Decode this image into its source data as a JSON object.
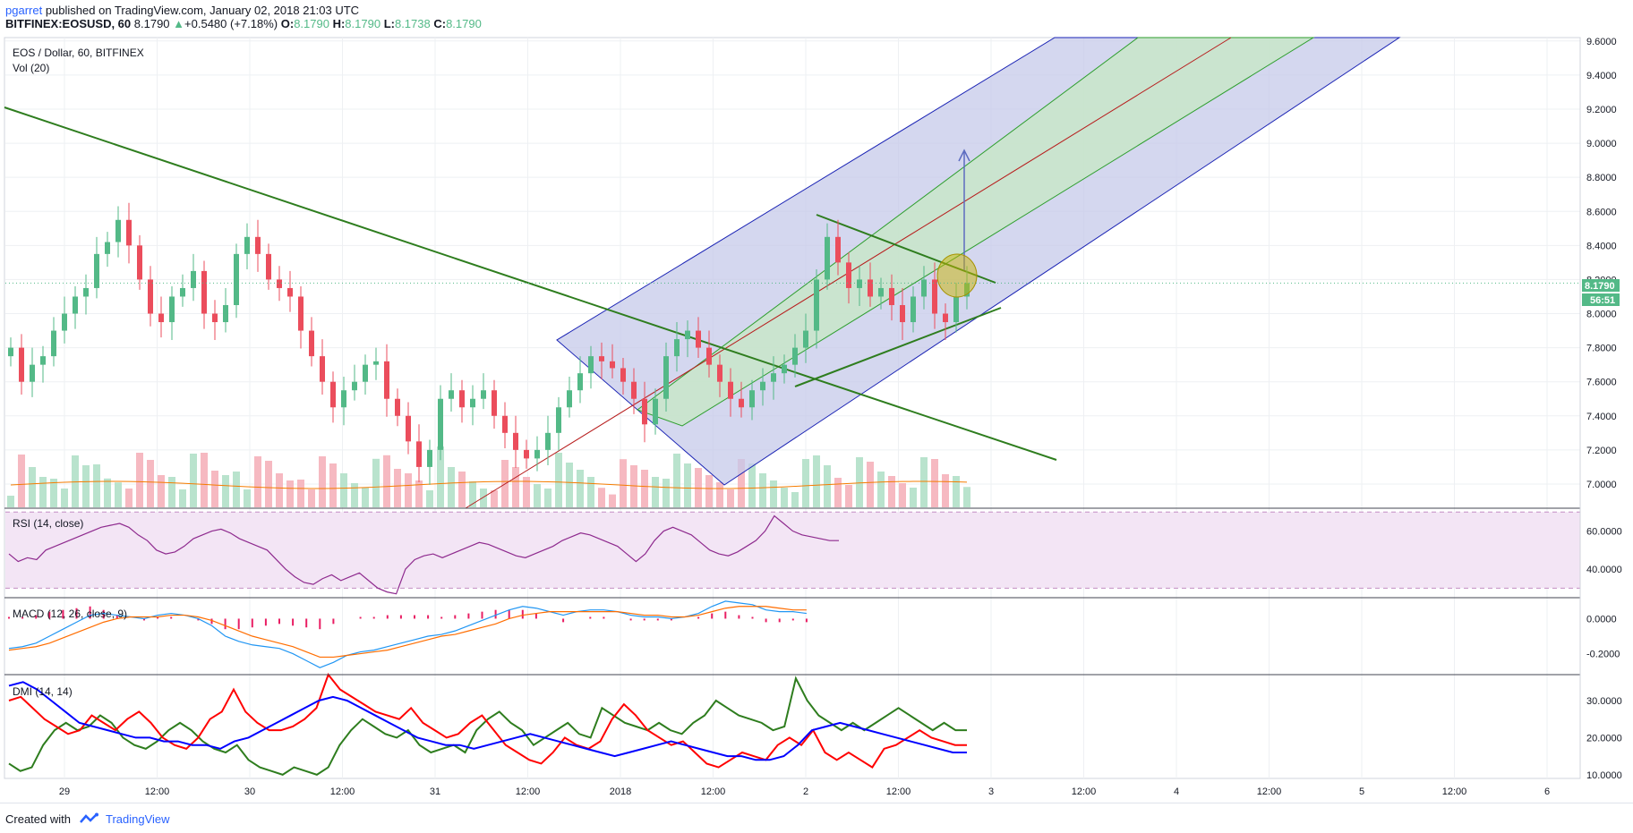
{
  "header": {
    "author": "pgarret",
    "published": " published on TradingView.com, January 02, 2018 21:03 UTC",
    "symbol": "BITFINEX:EOSUSD, 60",
    "last": "8.1790",
    "change": "+0.5480 (+7.18%)",
    "o_label": "O:",
    "o_value": "8.1790",
    "h_label": "H:",
    "h_value": "8.1790",
    "l_label": "L:",
    "l_value": "8.1738",
    "c_label": "C:",
    "c_value": "8.1790"
  },
  "main_pane": {
    "title": "EOS / Dollar, 60, BITFINEX",
    "vol_label": "Vol (20)",
    "price_badge": "8.1790",
    "countdown_badge": "56:51"
  },
  "rsi_pane": {
    "label": "RSI (14, close)"
  },
  "macd_pane": {
    "label": "MACD (12, 26, close, 9)"
  },
  "dmi_pane": {
    "label": "DMI (14, 14)"
  },
  "footer": {
    "created_with": "Created with",
    "brand": "TradingView"
  },
  "colors": {
    "up": "#53b987",
    "down": "#eb4d5c",
    "vol_up": "#b9e3cd",
    "vol_down": "#f6b9c1",
    "trend_green": "#2e7d1e",
    "channel_blue_fill": "#c5cae9",
    "channel_green_fill": "#c8e6c9",
    "rsi": "#8e2a8e",
    "macd": "#2196f3",
    "signal": "#ff6d00",
    "hist": "#e91e63",
    "dmi_plus": "#2e7d1e",
    "dmi_minus": "#ff0000",
    "adx": "#0000ff"
  },
  "chart_data": [
    {
      "type": "candlestick",
      "title": "EOS / Dollar, 60, BITFINEX",
      "x_tick_labels": [
        "29",
        "12:00",
        "30",
        "12:00",
        "31",
        "12:00",
        "2018",
        "12:00",
        "2",
        "12:00",
        "3",
        "12:00",
        "4",
        "12:00",
        "5",
        "12:00",
        "6"
      ],
      "y_tick_labels": [
        "7.0000",
        "7.2000",
        "7.4000",
        "7.6000",
        "7.8000",
        "8.0000",
        "8.2000",
        "8.4000",
        "8.6000",
        "8.8000",
        "9.0000",
        "9.2000",
        "9.4000",
        "9.6000"
      ],
      "ylim": [
        6.9,
        9.62
      ],
      "last_price": 8.179,
      "approx_closes": [
        7.8,
        7.6,
        7.7,
        7.75,
        7.9,
        8.0,
        8.1,
        8.15,
        8.35,
        8.42,
        8.55,
        8.4,
        8.2,
        8.0,
        7.95,
        8.1,
        8.15,
        8.25,
        8.0,
        7.95,
        8.05,
        8.35,
        8.45,
        8.35,
        8.2,
        8.15,
        8.1,
        7.9,
        7.75,
        7.6,
        7.45,
        7.55,
        7.6,
        7.7,
        7.72,
        7.5,
        7.4,
        7.25,
        7.1,
        7.2,
        7.5,
        7.55,
        7.45,
        7.5,
        7.55,
        7.4,
        7.3,
        7.2,
        7.15,
        7.2,
        7.3,
        7.45,
        7.55,
        7.65,
        7.75,
        7.72,
        7.68,
        7.6,
        7.5,
        7.35,
        7.5,
        7.75,
        7.85,
        7.9,
        7.8,
        7.7,
        7.6,
        7.5,
        7.45,
        7.55,
        7.6,
        7.65,
        7.7,
        7.8,
        7.9,
        8.2,
        8.45,
        8.3,
        8.15,
        8.2,
        8.1,
        8.15,
        8.05,
        7.95,
        8.1,
        8.2,
        8.0,
        7.95,
        8.1,
        8.179
      ]
    },
    {
      "type": "bar",
      "name": "Vol (20)",
      "note": "volume bars at bottom of main pane with moving-average line"
    },
    {
      "type": "line",
      "title": "RSI (14, close)",
      "y_tick_labels": [
        "40.0000",
        "60.0000"
      ],
      "ylim": [
        25,
        72
      ],
      "bands": [
        30,
        70
      ],
      "values": [
        48,
        44,
        46,
        45,
        50,
        52,
        54,
        56,
        58,
        60,
        62,
        63,
        64,
        62,
        58,
        55,
        50,
        48,
        49,
        52,
        56,
        58,
        60,
        61,
        59,
        56,
        54,
        52,
        50,
        45,
        40,
        36,
        33,
        32,
        35,
        37,
        34,
        36,
        38,
        34,
        30,
        28,
        27,
        40,
        45,
        47,
        48,
        46,
        48,
        50,
        52,
        54,
        53,
        51,
        49,
        47,
        46,
        48,
        50,
        52,
        55,
        57,
        59,
        58,
        56,
        54,
        52,
        48,
        44,
        48,
        55,
        60,
        62,
        60,
        58,
        54,
        50,
        48,
        47,
        49,
        52,
        55,
        60,
        68,
        64,
        60,
        58,
        57,
        56,
        55,
        55
      ]
    },
    {
      "type": "line",
      "title": "MACD (12, 26, close, 9)",
      "y_tick_labels": [
        "0.0000",
        "-0.2000"
      ],
      "ylim": [
        -0.32,
        0.12
      ],
      "series": [
        {
          "name": "MACD",
          "values": [
            -0.17,
            -0.16,
            -0.14,
            -0.1,
            -0.06,
            -0.02,
            0.02,
            0.03,
            0.02,
            0.01,
            0.0,
            0.02,
            0.03,
            0.02,
            0.0,
            -0.04,
            -0.1,
            -0.13,
            -0.15,
            -0.16,
            -0.17,
            -0.2,
            -0.24,
            -0.28,
            -0.25,
            -0.21,
            -0.19,
            -0.18,
            -0.16,
            -0.14,
            -0.12,
            -0.1,
            -0.09,
            -0.07,
            -0.04,
            -0.01,
            0.02,
            0.05,
            0.07,
            0.06,
            0.04,
            0.02,
            0.04,
            0.05,
            0.05,
            0.04,
            0.02,
            0.01,
            0.01,
            0.0,
            0.01,
            0.03,
            0.07,
            0.1,
            0.09,
            0.08,
            0.05,
            0.04,
            0.04,
            0.03
          ]
        },
        {
          "name": "Signal",
          "values": [
            -0.18,
            -0.17,
            -0.16,
            -0.14,
            -0.11,
            -0.08,
            -0.05,
            -0.02,
            0.0,
            0.01,
            0.01,
            0.01,
            0.02,
            0.02,
            0.01,
            -0.01,
            -0.04,
            -0.07,
            -0.1,
            -0.12,
            -0.14,
            -0.16,
            -0.19,
            -0.22,
            -0.22,
            -0.21,
            -0.2,
            -0.19,
            -0.18,
            -0.16,
            -0.14,
            -0.12,
            -0.1,
            -0.09,
            -0.07,
            -0.05,
            -0.03,
            0.0,
            0.02,
            0.03,
            0.04,
            0.04,
            0.04,
            0.04,
            0.04,
            0.04,
            0.03,
            0.02,
            0.02,
            0.01,
            0.01,
            0.02,
            0.04,
            0.06,
            0.07,
            0.07,
            0.07,
            0.06,
            0.05,
            0.05
          ]
        }
      ]
    },
    {
      "type": "line",
      "title": "DMI (14, 14)",
      "y_tick_labels": [
        "10.0000",
        "20.0000",
        "30.0000"
      ],
      "ylim": [
        9,
        37
      ],
      "series": [
        {
          "name": "+DI",
          "values": [
            13,
            11,
            12,
            18,
            22,
            24,
            22,
            23,
            26,
            24,
            20,
            18,
            17,
            19,
            22,
            24,
            22,
            19,
            17,
            16,
            18,
            14,
            12,
            11,
            10,
            12,
            11,
            10,
            12,
            18,
            22,
            25,
            23,
            21,
            20,
            22,
            18,
            16,
            17,
            18,
            16,
            22,
            25,
            27,
            24,
            22,
            18,
            20,
            22,
            24,
            21,
            20,
            28,
            26,
            24,
            23,
            22,
            24,
            22,
            21,
            24,
            26,
            30,
            28,
            26,
            25,
            24,
            22,
            23,
            36,
            30,
            26,
            24,
            22,
            24,
            22,
            24,
            26,
            28,
            26,
            24,
            22,
            24,
            22,
            22
          ]
        },
        {
          "name": "-DI",
          "values": [
            30,
            31,
            28,
            25,
            23,
            21,
            22,
            26,
            24,
            22,
            25,
            27,
            24,
            20,
            18,
            17,
            20,
            25,
            27,
            33,
            27,
            24,
            22,
            22,
            23,
            25,
            28,
            37,
            33,
            31,
            29,
            27,
            26,
            25,
            28,
            24,
            22,
            20,
            21,
            24,
            26,
            22,
            18,
            16,
            14,
            13,
            16,
            20,
            18,
            17,
            19,
            25,
            29,
            26,
            22,
            20,
            18,
            19,
            16,
            13,
            12,
            14,
            16,
            15,
            14,
            18,
            20,
            18,
            22,
            16,
            14,
            16,
            14,
            12,
            17,
            18,
            20,
            22,
            20,
            19,
            18,
            18
          ]
        },
        {
          "name": "ADX",
          "values": [
            34,
            35,
            33,
            30,
            27,
            24,
            23,
            22,
            21,
            20,
            20,
            19,
            19,
            18,
            18,
            17,
            19,
            20,
            22,
            24,
            26,
            28,
            30,
            31,
            30,
            28,
            26,
            24,
            22,
            20,
            19,
            18,
            18,
            17,
            18,
            19,
            20,
            21,
            20,
            19,
            18,
            17,
            16,
            15,
            16,
            17,
            18,
            19,
            18,
            17,
            16,
            15,
            15,
            14,
            14,
            15,
            18,
            22,
            23,
            24,
            23,
            22,
            21,
            20,
            19,
            18,
            17,
            16,
            16
          ]
        }
      ]
    }
  ]
}
